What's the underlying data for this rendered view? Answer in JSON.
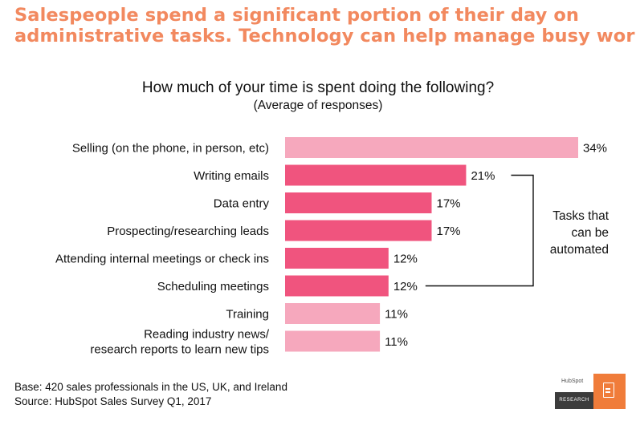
{
  "headline": {
    "line1": "Salespeople spend a significant portion of their day on",
    "line2": "administrative tasks. Technology can help manage busy work."
  },
  "chart_data": {
    "type": "bar",
    "orientation": "horizontal",
    "title": "How much of your time is spent doing the following?",
    "subtitle": "(Average of responses)",
    "categories": [
      [
        "Selling (on the phone, in person, etc)"
      ],
      [
        "Writing emails"
      ],
      [
        "Data entry"
      ],
      [
        "Prospecting/researching leads"
      ],
      [
        "Attending internal meetings or check ins"
      ],
      [
        "Scheduling meetings"
      ],
      [
        "Training"
      ],
      [
        "Reading industry news/",
        "research reports to learn new tips"
      ]
    ],
    "values": [
      34,
      21,
      17,
      17,
      12,
      12,
      11,
      11
    ],
    "value_labels": [
      "34%",
      "21%",
      "17%",
      "17%",
      "12%",
      "12%",
      "11%",
      "11%"
    ],
    "value_unit": "%",
    "automatable": [
      false,
      true,
      true,
      true,
      true,
      true,
      false,
      false
    ],
    "colors": {
      "automatable": "#f0547e",
      "other": "#f6a8bd",
      "bracket": "#111111"
    },
    "xlim": [
      0,
      34
    ],
    "grid": false,
    "legend": "none"
  },
  "annotation": {
    "lines": [
      "Tasks that",
      "can be",
      "automated"
    ]
  },
  "footer": {
    "base": "Base: 420 sales professionals in the US, UK, and Ireland",
    "source": "Source: HubSpot Sales Survey Q1, 2017"
  },
  "logo": {
    "brand": "HubSpot",
    "label": "RESEARCH",
    "icon": "document-icon",
    "accent": "#f07c3a"
  }
}
